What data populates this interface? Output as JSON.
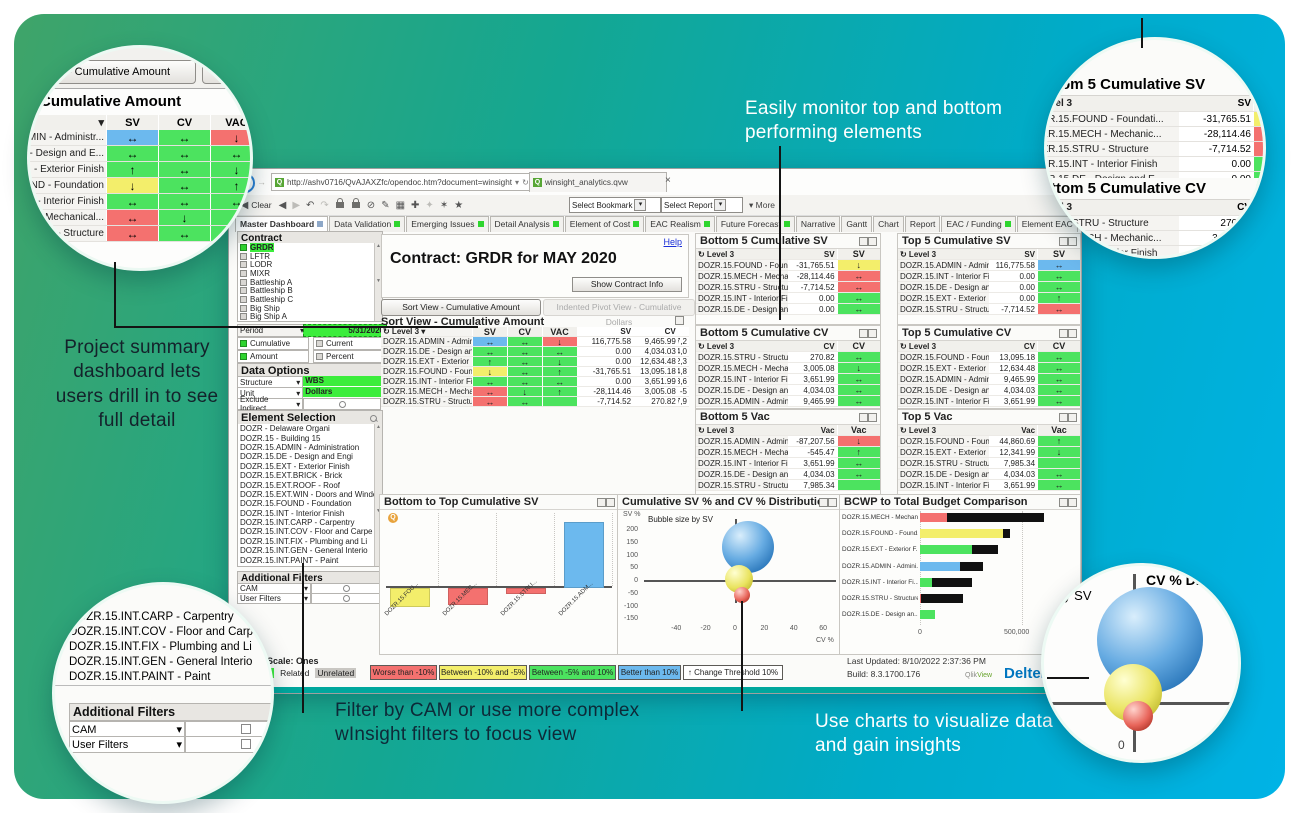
{
  "annotations": {
    "monitor": "Easily monitor top and bottom performing elements",
    "summary": "Project summary dashboard lets users drill in to see full detail",
    "filter": "Filter by CAM or use more complex wInsight filters to focus view",
    "charts": "Use charts to visualize data and gain insights"
  },
  "browser": {
    "url": "http://ashv0716/QvAJAXZfc/opendoc.htm?document=winsight_analytics.qvw&lang=en",
    "tab_title": "winsight_analytics.qvw",
    "close": "×"
  },
  "toolbar": {
    "clear": "Clear",
    "bookmark": "Select Bookmark",
    "report": "Select Report",
    "more": "More",
    "icons": [
      {
        "name": "beginning-icon",
        "glyph": "|◀",
        "dim": false
      },
      {
        "name": "back-icon",
        "glyph": "◀",
        "dim": false
      },
      {
        "name": "forward-icon",
        "glyph": "▶",
        "dim": true
      },
      {
        "name": "undo-icon",
        "glyph": "↶",
        "dim": false
      },
      {
        "name": "redo-icon",
        "glyph": "↷",
        "dim": true
      },
      {
        "name": "lock-icon",
        "glyph": "LOCK",
        "dim": false
      },
      {
        "name": "unlock-icon",
        "glyph": "LOCK",
        "dim": false
      },
      {
        "name": "clear-selections-icon",
        "glyph": "⊘",
        "dim": false
      },
      {
        "name": "edit-icon",
        "glyph": "✎",
        "dim": false
      },
      {
        "name": "chart-object-icon",
        "glyph": "▦",
        "dim": false
      },
      {
        "name": "add-icon",
        "glyph": "✚",
        "dim": false
      },
      {
        "name": "tools-icon",
        "glyph": "✦",
        "dim": true
      },
      {
        "name": "bookmark-add-icon",
        "glyph": "✶",
        "dim": false
      },
      {
        "name": "bookmark-icon",
        "glyph": "★",
        "dim": false
      }
    ]
  },
  "tabs": [
    {
      "label": "Master Dashboard",
      "dot": "#8ea8c8",
      "active": true
    },
    {
      "label": "Data Validation",
      "dot": "#2ed52e",
      "active": false
    },
    {
      "label": "Emerging Issues",
      "dot": "#2ed52e",
      "active": false
    },
    {
      "label": "Detail Analysis",
      "dot": "#2ed52e",
      "active": false
    },
    {
      "label": "Element of Cost",
      "dot": "#2ed52e",
      "active": false
    },
    {
      "label": "EAC Realism",
      "dot": "#2ed52e",
      "active": false
    },
    {
      "label": "Future Forecast",
      "dot": "#2ed52e",
      "active": false
    },
    {
      "label": "Narrative",
      "dot": null,
      "active": false
    },
    {
      "label": "Gantt",
      "dot": null,
      "active": false
    },
    {
      "label": "Chart",
      "dot": null,
      "active": false
    },
    {
      "label": "Report",
      "dot": null,
      "active": false
    },
    {
      "label": "EAC / Funding",
      "dot": "#2ed52e",
      "active": false
    },
    {
      "label": "Element EAC",
      "dot": null,
      "active": false
    }
  ],
  "sidebar": {
    "contract_header": "Contract",
    "contracts": [
      {
        "label": "GRDR",
        "selected": true
      },
      {
        "label": "LFTR",
        "selected": false
      },
      {
        "label": "LODR",
        "selected": false
      },
      {
        "label": "MIXR",
        "selected": false
      },
      {
        "label": "Battleship A",
        "selected": false
      },
      {
        "label": "Battleship B",
        "selected": false
      },
      {
        "label": "Battleship C",
        "selected": false
      },
      {
        "label": "Big Ship",
        "selected": false
      },
      {
        "label": "Big Ship A",
        "selected": false
      }
    ],
    "period_label": "Period",
    "period_value": "5/31/2020",
    "toggles": [
      {
        "label": "Cumulative",
        "on": true
      },
      {
        "label": "Current",
        "on": false
      },
      {
        "label": "Amount",
        "on": true
      },
      {
        "label": "Percent",
        "on": false
      }
    ],
    "data_options_header": "Data Options",
    "data_options": [
      {
        "label": "Structure",
        "value": "WBS"
      },
      {
        "label": "Unit",
        "value": "Dollars"
      },
      {
        "label": "Exclude Indirect",
        "value": ""
      }
    ],
    "element_header": "Element Selection",
    "elements": [
      "DOZR - Delaware Organi",
      "DOZR.15 - Building 15",
      "DOZR.15.ADMIN - Administration",
      "DOZR.15.DE - Design and Engi",
      "DOZR.15.EXT - Exterior Finish",
      "DOZR.15.EXT.BRICK - Brick",
      "DOZR.15.EXT.ROOF - Roof",
      "DOZR.15.EXT.WIN - Doors and Windo",
      "DOZR.15.FOUND - Foundation",
      "DOZR.15.INT - Interior Finish",
      "DOZR.15.INT.CARP - Carpentry",
      "DOZR.15.INT.COV - Floor and Carpe",
      "DOZR.15.INT.FIX - Plumbing and Li",
      "DOZR.15.INT.GEN - General Interio",
      "DOZR.15.INT.PAINT - Paint"
    ],
    "additional_filters_header": "Additional Filters",
    "additional_filters": [
      "CAM",
      "User Filters"
    ],
    "unit_scale": "Unit Scale: Ones",
    "selection_legend": [
      "Selected",
      "Related",
      "Unrelated"
    ]
  },
  "main": {
    "help": "Help",
    "title": "Contract: GRDR for MAY 2020",
    "show_info": "Show Contract Info",
    "toggle_active": "Sort View - Cumulative Amount",
    "toggle_inactive": "Indented Pivot View - Cumulative Dollars",
    "sort_header": "Sort View - Cumulative Amount",
    "level_col": "Level 3",
    "arrow_cols": [
      "SV",
      "CV",
      "VAC"
    ],
    "value_cols": [
      "SV",
      "CV",
      "VAC"
    ],
    "rows": [
      {
        "label": "DOZR.15.ADMIN - Administr",
        "sv": [
          "blue",
          "lr"
        ],
        "cv": [
          "green",
          "lr"
        ],
        "vac": [
          "red",
          "down"
        ],
        "sv_val": "116,775.58",
        "cv_val": "9,465.99",
        "vac_val": "-87,2"
      },
      {
        "label": "DOZR.15.DE - Design and E...",
        "sv": [
          "green",
          "lr"
        ],
        "cv": [
          "green",
          "lr"
        ],
        "vac": [
          "green",
          "lr"
        ],
        "sv_val": "0.00",
        "cv_val": "4,034.03",
        "vac_val": "4,0"
      },
      {
        "label": "DOZR.15.EXT - Exterior Finish",
        "sv": [
          "green",
          "up"
        ],
        "cv": [
          "green",
          "lr"
        ],
        "vac": [
          "green",
          "down"
        ],
        "sv_val": "0.00",
        "cv_val": "12,634.48",
        "vac_val": "12,3"
      },
      {
        "label": "DOZR.15.FOUND - Foundation",
        "sv": [
          "yellow",
          "down"
        ],
        "cv": [
          "green",
          "lr"
        ],
        "vac": [
          "green",
          "up"
        ],
        "sv_val": "-31,765.51",
        "cv_val": "13,095.18",
        "vac_val": "44,8"
      },
      {
        "label": "DOZR.15.INT - Interior Finish",
        "sv": [
          "green",
          "lr"
        ],
        "cv": [
          "green",
          "lr"
        ],
        "vac": [
          "green",
          "lr"
        ],
        "sv_val": "0.00",
        "cv_val": "3,651.99",
        "vac_val": "3,6"
      },
      {
        "label": "DOZR.15.MECH - Mechanical...",
        "sv": [
          "red",
          "lr"
        ],
        "cv": [
          "green",
          "down"
        ],
        "vac": [
          "green",
          "up"
        ],
        "sv_val": "-28,114.46",
        "cv_val": "3,005.08",
        "vac_val": "-5"
      },
      {
        "label": "DOZR.15.STRU - Structure",
        "sv": [
          "red",
          "lr"
        ],
        "cv": [
          "green",
          "lr"
        ],
        "vac": [
          "green",
          "none"
        ],
        "sv_val": "-7,714.52",
        "cv_val": "270.82",
        "vac_val": "7,9"
      }
    ]
  },
  "panels": [
    {
      "id": "b5sv",
      "title": "Bottom 5 Cumulative SV",
      "level": "Level 3",
      "vcol": "SV",
      "acol": "SV",
      "rows": [
        {
          "label": "DOZR.15.FOUND - Foundati...",
          "value": "-31,765.51",
          "color": "yellow",
          "arrow": "down"
        },
        {
          "label": "DOZR.15.MECH - Mechanic...",
          "value": "-28,114.46",
          "color": "red",
          "arrow": "lr"
        },
        {
          "label": "DOZR.15.STRU - Structure",
          "value": "-7,714.52",
          "color": "red",
          "arrow": "lr"
        },
        {
          "label": "DOZR.15.INT - Interior Finish",
          "value": "0.00",
          "color": "green",
          "arrow": "lr"
        },
        {
          "label": "DOZR.15.DE - Design and E...",
          "value": "0.00",
          "color": "green",
          "arrow": "lr"
        }
      ]
    },
    {
      "id": "t5sv",
      "title": "Top 5 Cumulative SV",
      "level": "Level 3",
      "vcol": "SV",
      "acol": "SV",
      "rows": [
        {
          "label": "DOZR.15.ADMIN - Administ...",
          "value": "116,775.58",
          "color": "blue",
          "arrow": "lr"
        },
        {
          "label": "DOZR.15.INT - Interior Fini...",
          "value": "0.00",
          "color": "green",
          "arrow": "lr"
        },
        {
          "label": "DOZR.15.DE - Design and ...",
          "value": "0.00",
          "color": "green",
          "arrow": "lr"
        },
        {
          "label": "DOZR.15.EXT - Exterior Fin...",
          "value": "0.00",
          "color": "green",
          "arrow": "up"
        },
        {
          "label": "DOZR.15.STRU - Structure",
          "value": "-7,714.52",
          "color": "red",
          "arrow": "lr"
        }
      ]
    },
    {
      "id": "b5cv",
      "title": "Bottom 5 Cumulative CV",
      "level": "Level 3",
      "vcol": "CV",
      "acol": "CV",
      "rows": [
        {
          "label": "DOZR.15.STRU - Structure",
          "value": "270.82",
          "color": "green",
          "arrow": "lr"
        },
        {
          "label": "DOZR.15.MECH - Mechanic...",
          "value": "3,005.08",
          "color": "green",
          "arrow": "down"
        },
        {
          "label": "DOZR.15.INT - Interior Finish",
          "value": "3,651.99",
          "color": "green",
          "arrow": "lr"
        },
        {
          "label": "DOZR.15.DE - Design and E...",
          "value": "4,034.03",
          "color": "green",
          "arrow": "lr"
        },
        {
          "label": "DOZR.15.ADMIN - Administ...",
          "value": "9,465.99",
          "color": "green",
          "arrow": "lr"
        }
      ]
    },
    {
      "id": "t5cv",
      "title": "Top 5 Cumulative CV",
      "level": "Level 3",
      "vcol": "CV",
      "acol": "CV",
      "rows": [
        {
          "label": "DOZR.15.FOUND - Founda...",
          "value": "13,095.18",
          "color": "green",
          "arrow": "lr"
        },
        {
          "label": "DOZR.15.EXT - Exterior Fin...",
          "value": "12,634.48",
          "color": "green",
          "arrow": "lr"
        },
        {
          "label": "DOZR.15.ADMIN - Adminis...",
          "value": "9,465.99",
          "color": "green",
          "arrow": "lr"
        },
        {
          "label": "DOZR.15.DE - Design and ...",
          "value": "4,034.03",
          "color": "green",
          "arrow": "lr"
        },
        {
          "label": "DOZR.15.INT - Interior Fini...",
          "value": "3,651.99",
          "color": "green",
          "arrow": "lr"
        }
      ]
    },
    {
      "id": "b5vac",
      "title": "Bottom 5 Vac",
      "level": "Level 3",
      "vcol": "Vac",
      "acol": "Vac",
      "rows": [
        {
          "label": "DOZR.15.ADMIN - Administ...",
          "value": "-87,207.56",
          "color": "red",
          "arrow": "down"
        },
        {
          "label": "DOZR.15.MECH - Mechanic...",
          "value": "-545.47",
          "color": "green",
          "arrow": "up"
        },
        {
          "label": "DOZR.15.INT - Interior Finish",
          "value": "3,651.99",
          "color": "green",
          "arrow": "lr"
        },
        {
          "label": "DOZR.15.DE - Design and ...",
          "value": "4,034.03",
          "color": "green",
          "arrow": "lr"
        },
        {
          "label": "DOZR.15.STRU - Structure",
          "value": "7,985.34",
          "color": "green",
          "arrow": "none"
        }
      ]
    },
    {
      "id": "t5vac",
      "title": "Top 5 Vac",
      "level": "Level 3",
      "vcol": "Vac",
      "acol": "Vac",
      "rows": [
        {
          "label": "DOZR.15.FOUND - Foundat...",
          "value": "44,860.69",
          "color": "green",
          "arrow": "up"
        },
        {
          "label": "DOZR.15.EXT - Exterior Fin...",
          "value": "12,341.99",
          "color": "green",
          "arrow": "down"
        },
        {
          "label": "DOZR.15.STRU - Structure",
          "value": "7,985.34",
          "color": "green",
          "arrow": "none"
        },
        {
          "label": "DOZR.15.DE - Design and ...",
          "value": "4,034.03",
          "color": "green",
          "arrow": "lr"
        },
        {
          "label": "DOZR.15.INT - Interior Finish",
          "value": "3,651.99",
          "color": "green",
          "arrow": "lr"
        }
      ]
    }
  ],
  "chart_data": [
    {
      "type": "bar",
      "title": "Bottom to Top Cumulative SV",
      "categories": [
        "DOZR.15.FOU...",
        "DOZR.15.MEC...",
        "DOZR.15.STRU...",
        "DOZR.15.ADM..."
      ],
      "values": [
        -31765.51,
        -28114.46,
        -7714.52,
        116775.58
      ],
      "colors": [
        "#f3ee6b",
        "#f4716f",
        "#f4716f",
        "#6cb9ee"
      ],
      "xlabel": "",
      "ylabel": "",
      "ylim": [
        -40000,
        120000
      ],
      "grid": true
    },
    {
      "type": "scatter",
      "title": "Cumulative SV % and CV % Distribution",
      "subtitle": "Bubble size by SV",
      "xlabel": "CV %",
      "ylabel": "SV %",
      "xticks": [
        -40,
        -20,
        0,
        20,
        40,
        60
      ],
      "yticks": [
        200,
        150,
        100,
        50,
        0,
        -50,
        -100,
        -150
      ],
      "points": [
        {
          "cv": 9,
          "sv": 128,
          "r": 26,
          "color": "blue"
        },
        {
          "cv": 3,
          "sv": 4,
          "r": 14,
          "color": "yellow"
        },
        {
          "cv": 5,
          "sv": -58,
          "r": 8,
          "color": "red"
        }
      ]
    },
    {
      "type": "bar",
      "title": "BCWP to Total Budget Comparison",
      "categories": [
        "DOZR.15.MECH - Mechan...",
        "DOZR.15.FOUND - Found...",
        "DOZR.15.EXT - Exterior F...",
        "DOZR.15.ADMIN - Admini...",
        "DOZR.15.INT - Interior Fi...",
        "DOZR.15.STRU - Structure",
        "DOZR.15.DE - Design an..."
      ],
      "series": [
        {
          "name": "BCWP",
          "values": [
            130000,
            405000,
            255000,
            195000,
            60000,
            5000,
            75000
          ],
          "colors": [
            "#f4716f",
            "#f3ee6b",
            "#4ce35f",
            "#6cb9ee",
            "#4ce35f",
            "#f4716f",
            "#4ce35f"
          ]
        },
        {
          "name": "Total Budget",
          "values": [
            610000,
            440000,
            380000,
            310000,
            255000,
            210000,
            75000
          ],
          "color": "#111111"
        }
      ],
      "xticks": [
        "0",
        "500,000"
      ],
      "xlim": [
        0,
        700000
      ]
    }
  ],
  "legend": [
    {
      "label": "Worse than -10%",
      "color": "#f4716f",
      "w": 59
    },
    {
      "label": "Between -10% and -5%",
      "color": "#f3ee6b",
      "w": 80
    },
    {
      "label": "Between -5% and 10%",
      "color": "#4ce35f",
      "w": 79
    },
    {
      "label": "Better than 10%",
      "color": "#6cb9ee",
      "w": 55
    },
    {
      "label": "Change Threshold 10%",
      "color": "#ffffff",
      "w": 92,
      "prefix": "↑"
    }
  ],
  "footer": {
    "last_updated": "Last Updated: 8/10/2022 2:37:36 PM",
    "build": "Build: 8.3.1700.176",
    "qlik_a": "Qlik",
    "qlik_b": "View",
    "deltek": "Deltek"
  },
  "callouts": {
    "cumulative_amount": {
      "button_label": "- Cumulative Amount",
      "button_fragment": "I",
      "title": "Cumulative Amount",
      "columns": [
        "SV",
        "CV",
        "VAC"
      ],
      "rows": [
        {
          "label": "MIN - Administr...",
          "cells": [
            [
              "blue",
              "lr"
            ],
            [
              "green",
              "lr"
            ],
            [
              "red",
              "down"
            ]
          ]
        },
        {
          "label": "- Design and E...",
          "cells": [
            [
              "green",
              "lr"
            ],
            [
              "green",
              "lr"
            ],
            [
              "green",
              "lr"
            ]
          ]
        },
        {
          "label": "- Exterior Finish",
          "cells": [
            [
              "green",
              "up"
            ],
            [
              "green",
              "lr"
            ],
            [
              "green",
              "down"
            ]
          ]
        },
        {
          "label": "IND - Foundation",
          "cells": [
            [
              "yellow",
              "down"
            ],
            [
              "green",
              "lr"
            ],
            [
              "green",
              "up"
            ]
          ]
        },
        {
          "label": "- Interior Finish",
          "cells": [
            [
              "green",
              "lr"
            ],
            [
              "green",
              "lr"
            ],
            [
              "green",
              "lr"
            ]
          ]
        },
        {
          "label": "i - Mechanical...",
          "cells": [
            [
              "red",
              "lr"
            ],
            [
              "green",
              "down"
            ],
            [
              "green",
              "up"
            ]
          ]
        },
        {
          "label": "- Structure",
          "cells": [
            [
              "red",
              "lr"
            ],
            [
              "green",
              "lr"
            ],
            [
              "green",
              "none"
            ]
          ]
        }
      ]
    },
    "bubble_zoom": {
      "header_fragment": "CV % Dist",
      "size_label": "Bubble size by SV",
      "zero_label": "0"
    }
  },
  "colors": {
    "green": "#4ce35f",
    "red": "#f4716f",
    "yellow": "#f3ee6b",
    "blue": "#6cb9ee",
    "select_green": "#3ced3c",
    "deltek_blue": "#0076c0",
    "teal_bar": "#00a79d"
  },
  "icons": {
    "cycle-icon": "↻",
    "caret-down-icon": "▾",
    "refresh-icon": "↻",
    "back-icon": "←",
    "close-icon": "×",
    "up-arrow-icon": "↑",
    "search-icon": "css-magnifier"
  }
}
